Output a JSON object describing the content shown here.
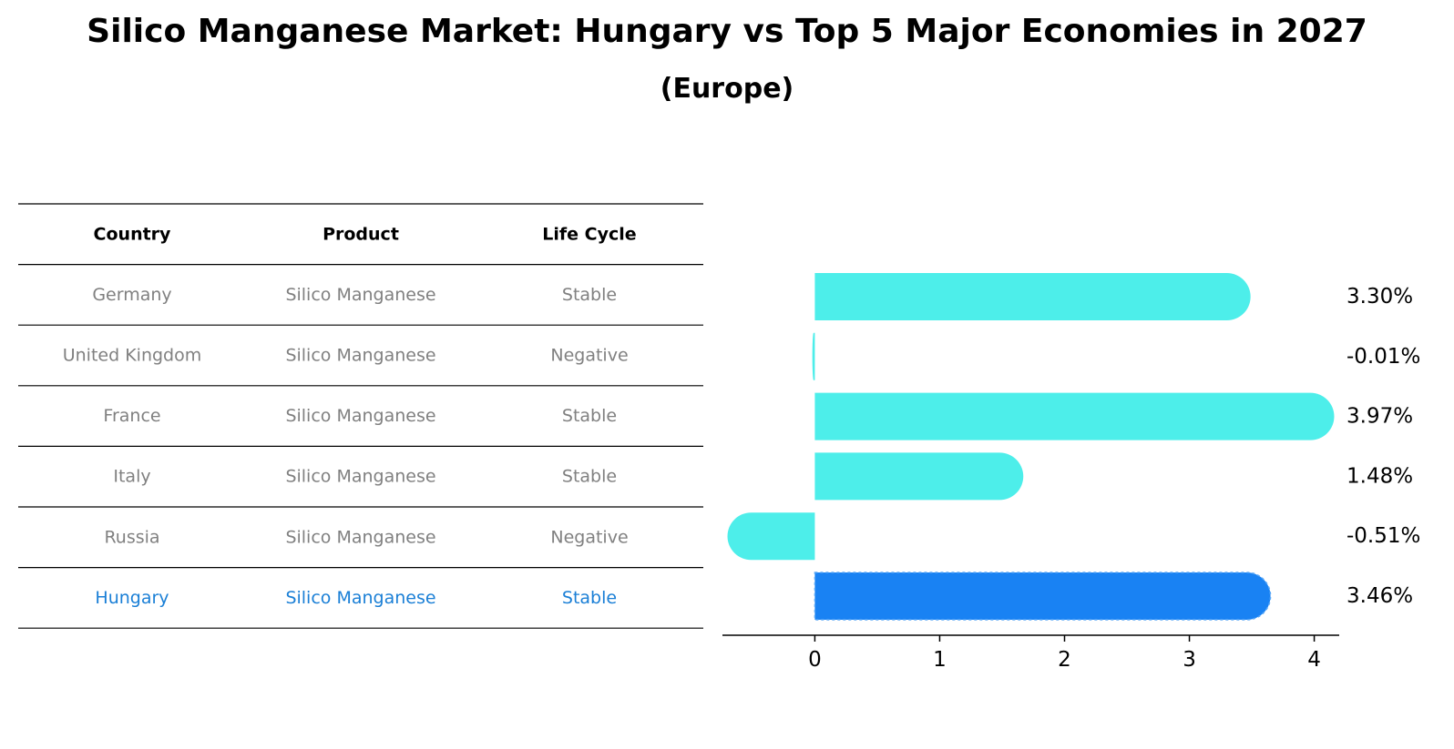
{
  "header": {
    "title": "Silico Manganese Market: Hungary vs Top 5 Major Economies in 2027",
    "subtitle": "(Europe)"
  },
  "table": {
    "columns": [
      "Country",
      "Product",
      "Life Cycle"
    ],
    "rows": [
      [
        "Germany",
        "Silico Manganese",
        "Stable"
      ],
      [
        "United Kingdom",
        "Silico Manganese",
        "Negative"
      ],
      [
        "France",
        "Silico Manganese",
        "Stable"
      ],
      [
        "Italy",
        "Silico Manganese",
        "Stable"
      ],
      [
        "Russia",
        "Silico Manganese",
        "Negative"
      ],
      [
        "Hungary",
        "Silico Manganese",
        "Stable"
      ]
    ],
    "highlight_row": 5,
    "colors": {
      "header_text": "#000000",
      "body_text": "#808080",
      "highlight_text": "#1a7fd6",
      "rule": "#000000"
    }
  },
  "chart_data": {
    "type": "bar",
    "orientation": "horizontal",
    "categories": [
      "Germany",
      "United Kingdom",
      "France",
      "Italy",
      "Russia",
      "Hungary"
    ],
    "values": [
      3.3,
      -0.01,
      3.97,
      1.48,
      -0.51,
      3.46
    ],
    "value_labels": [
      "3.30%",
      "-0.01%",
      "3.97%",
      "1.48%",
      "-0.51%",
      "3.46%"
    ],
    "xticks": [
      0,
      1,
      2,
      3,
      4
    ],
    "xlim": [
      -0.74,
      4.2
    ],
    "grid": false,
    "colors": {
      "bar": "#4deeea",
      "highlight_bar": "#1982f3",
      "axis": "#000000",
      "label": "#000000"
    },
    "highlight_index": 5
  }
}
